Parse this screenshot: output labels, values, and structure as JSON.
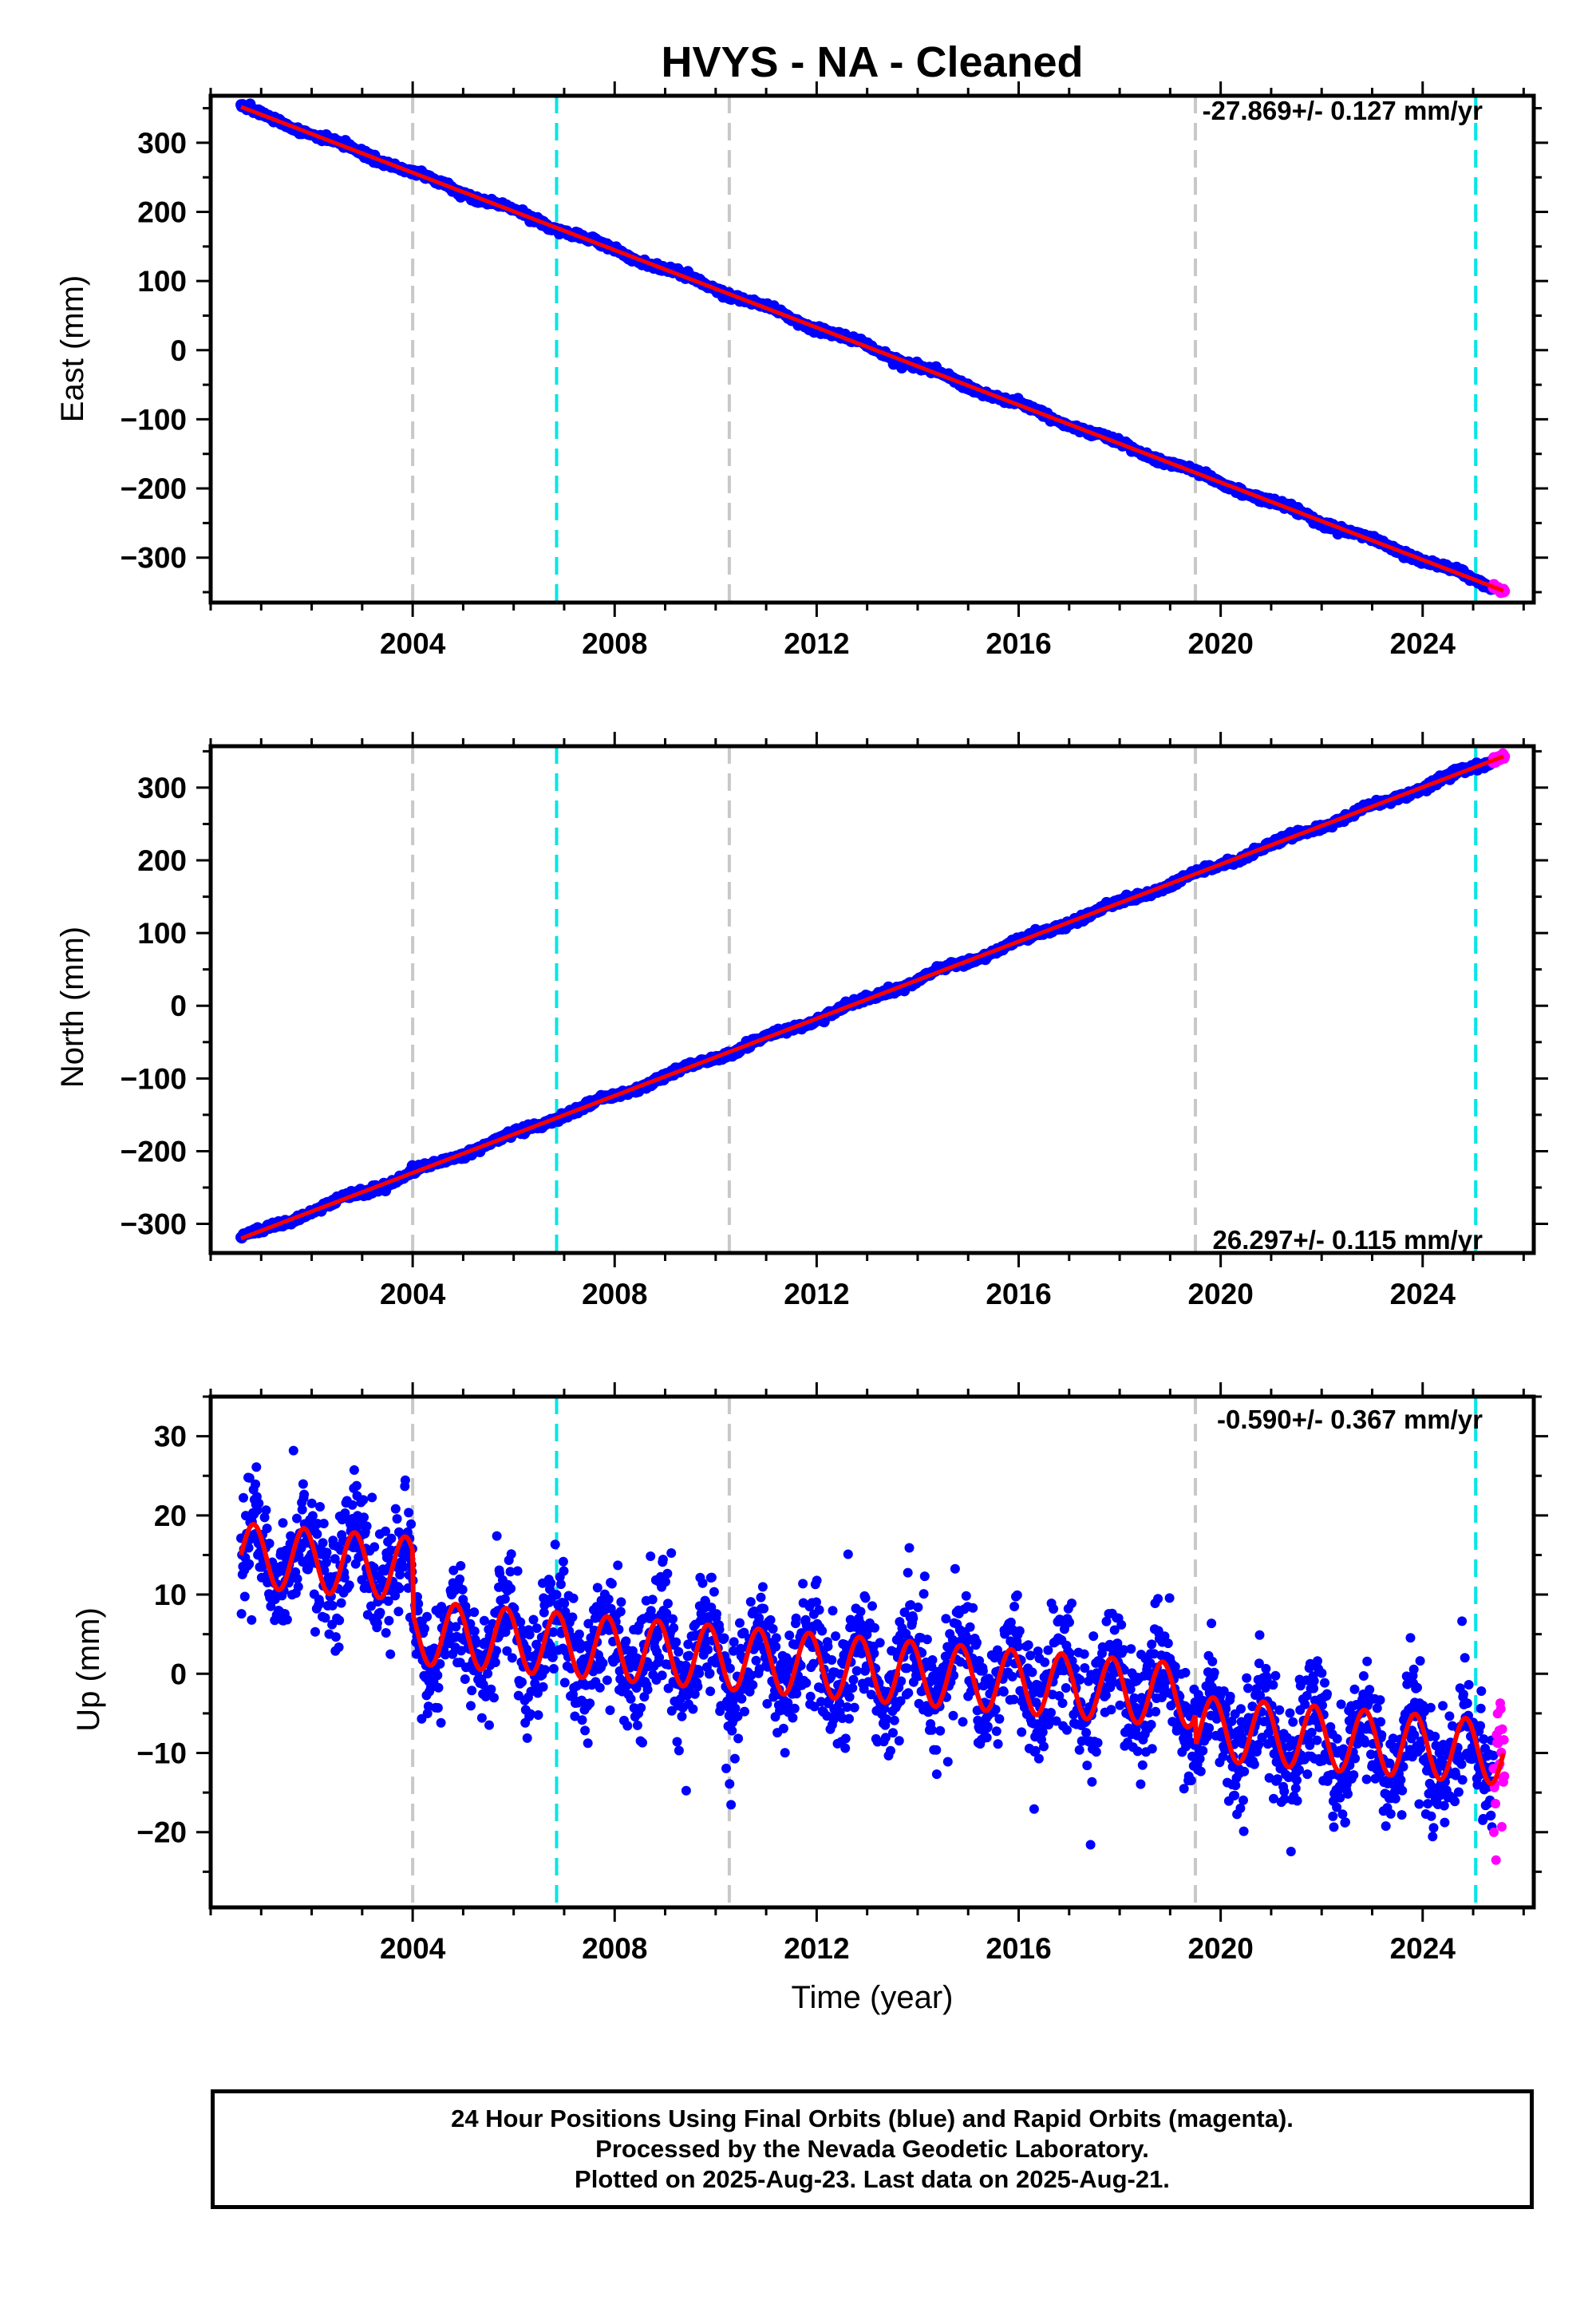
{
  "title": "HVYS  - NA - Cleaned",
  "colors": {
    "final_orbits": "#0000ff",
    "rapid_orbits": "#ff00ff",
    "model": "#ff0000",
    "equipment_change": "#c8c8c8",
    "event": "#00e5e5"
  },
  "footer": {
    "line1": "24 Hour Positions Using Final Orbits (blue) and Rapid Orbits (magenta).",
    "line2": "Processed by the Nevada Geodetic Laboratory.",
    "line3": "Plotted on 2025-Aug-23. Last data on 2025-Aug-21."
  },
  "chart_data": [
    {
      "type": "scatter",
      "panel": "east",
      "ylabel": "East (mm)",
      "xlabel": "",
      "rate_label": "-27.869+/- 0.127 mm/yr",
      "xlim": [
        2000.0,
        2026.2
      ],
      "ylim": [
        -365,
        368
      ],
      "xticks": [
        2004,
        2008,
        2012,
        2016,
        2020,
        2024
      ],
      "yticks": [
        -300,
        -200,
        -100,
        0,
        100,
        200,
        300
      ],
      "start": [
        2000.6,
        352
      ],
      "end": [
        2025.6,
        -348
      ],
      "vlines": {
        "grey": [
          2004.0,
          2010.27,
          2019.5
        ],
        "cyan": [
          2006.85,
          2025.05
        ]
      }
    },
    {
      "type": "scatter",
      "panel": "north",
      "ylabel": "North (mm)",
      "xlabel": "",
      "rate_label": "26.297+/- 0.115 mm/yr",
      "xlim": [
        2000.0,
        2026.2
      ],
      "ylim": [
        -340,
        357
      ],
      "xticks": [
        2004,
        2008,
        2012,
        2016,
        2020,
        2024
      ],
      "yticks": [
        -300,
        -200,
        -100,
        0,
        100,
        200,
        300
      ],
      "start": [
        2000.6,
        -320
      ],
      "end": [
        2025.6,
        343
      ],
      "vlines": {
        "grey": [
          2004.0,
          2010.27,
          2019.5
        ],
        "cyan": [
          2006.85,
          2025.05
        ]
      }
    },
    {
      "type": "scatter",
      "panel": "up",
      "ylabel": "Up (mm)",
      "xlabel": "Time (year)",
      "rate_label": "-0.590+/- 0.367 mm/yr",
      "xlim": [
        2000.0,
        2026.2
      ],
      "ylim": [
        -29.5,
        35
      ],
      "xticks": [
        2004,
        2008,
        2012,
        2016,
        2020,
        2024
      ],
      "yticks": [
        -20,
        -10,
        0,
        10,
        20,
        30
      ],
      "start": [
        2000.6,
        15
      ],
      "end": [
        2025.6,
        -10
      ],
      "seasonal_amplitude_mm": 4,
      "offsets": [
        {
          "year": 2004.0,
          "mm": -8
        },
        {
          "year": 2019.5,
          "mm": -4
        }
      ],
      "vlines": {
        "grey": [
          2004.0,
          2010.27,
          2019.5
        ],
        "cyan": [
          2006.85,
          2025.05
        ]
      }
    }
  ]
}
